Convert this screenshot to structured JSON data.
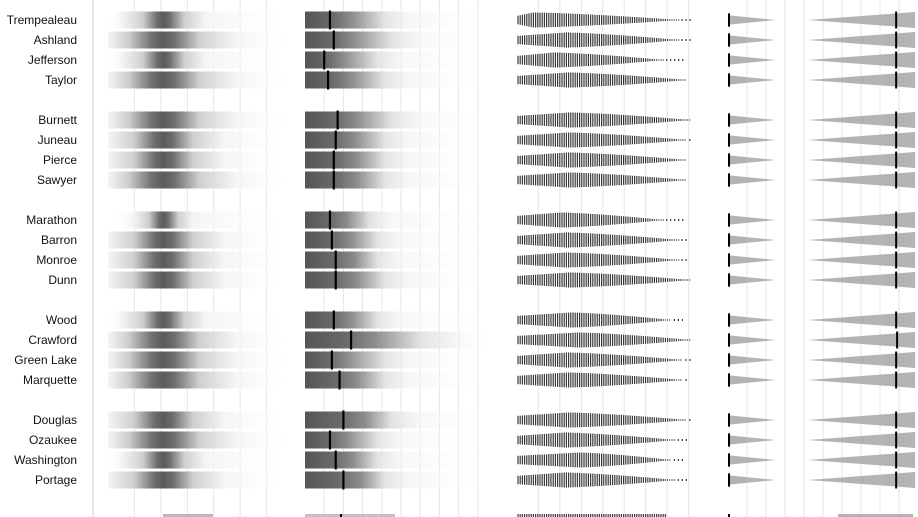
{
  "chart_data": {
    "type": "strip-gradient-comparison",
    "groups": [
      [
        "Trempealeau",
        "Ashland",
        "Jefferson",
        "Taylor"
      ],
      [
        "Burnett",
        "Juneau",
        "Pierce",
        "Sawyer"
      ],
      [
        "Marathon",
        "Barron",
        "Monroe",
        "Dunn"
      ],
      [
        "Wood",
        "Crawford",
        "Green Lake",
        "Marquette"
      ],
      [
        "Douglas",
        "Ozaukee",
        "Washington",
        "Portage"
      ]
    ],
    "rows": [
      {
        "label": "Trempealeau",
        "density_center": 0.3,
        "density_spread": 0.07,
        "bar_mean": 0.24,
        "bar_extent": 0.55,
        "bar_marker": 0.13,
        "violin_len": 0.84,
        "violin_peak": 0.1,
        "violin_tail_end": 0.97
      },
      {
        "label": "Ashland",
        "density_center": 0.3,
        "density_spread": 0.12,
        "bar_mean": 0.25,
        "bar_extent": 0.6,
        "bar_marker": 0.15,
        "violin_len": 0.84,
        "violin_peak": 0.3,
        "violin_tail_end": 0.97
      },
      {
        "label": "Jefferson",
        "density_center": 0.3,
        "density_spread": 0.07,
        "bar_mean": 0.2,
        "bar_extent": 0.5,
        "bar_marker": 0.1,
        "violin_len": 0.76,
        "violin_peak": 0.25,
        "violin_tail_end": 0.92
      },
      {
        "label": "Taylor",
        "density_center": 0.3,
        "density_spread": 0.12,
        "bar_mean": 0.24,
        "bar_extent": 0.55,
        "bar_marker": 0.12,
        "violin_len": 0.88,
        "violin_peak": 0.3,
        "violin_tail_end": 0.95
      },
      {
        "label": "Burnett",
        "density_center": 0.3,
        "density_spread": 0.12,
        "bar_mean": 0.27,
        "bar_extent": 0.6,
        "bar_marker": 0.17,
        "violin_len": 0.9,
        "violin_peak": 0.3,
        "violin_tail_end": 0.96
      },
      {
        "label": "Juneau",
        "density_center": 0.3,
        "density_spread": 0.1,
        "bar_mean": 0.26,
        "bar_extent": 0.55,
        "bar_marker": 0.16,
        "violin_len": 0.88,
        "violin_peak": 0.3,
        "violin_tail_end": 0.96
      },
      {
        "label": "Pierce",
        "density_center": 0.3,
        "density_spread": 0.1,
        "bar_mean": 0.27,
        "bar_extent": 0.55,
        "bar_marker": 0.15,
        "violin_len": 0.88,
        "violin_peak": 0.3,
        "violin_tail_end": 0.95
      },
      {
        "label": "Sawyer",
        "density_center": 0.3,
        "density_spread": 0.12,
        "bar_mean": 0.27,
        "bar_extent": 0.55,
        "bar_marker": 0.15,
        "violin_len": 0.88,
        "violin_peak": 0.3,
        "violin_tail_end": 0.94
      },
      {
        "label": "Marathon",
        "density_center": 0.3,
        "density_spread": 0.05,
        "bar_mean": 0.22,
        "bar_extent": 0.45,
        "bar_marker": 0.13,
        "violin_len": 0.76,
        "violin_peak": 0.3,
        "violin_tail_end": 0.92
      },
      {
        "label": "Barron",
        "density_center": 0.3,
        "density_spread": 0.1,
        "bar_mean": 0.24,
        "bar_extent": 0.5,
        "bar_marker": 0.14,
        "violin_len": 0.84,
        "violin_peak": 0.3,
        "violin_tail_end": 0.95
      },
      {
        "label": "Monroe",
        "density_center": 0.3,
        "density_spread": 0.1,
        "bar_mean": 0.26,
        "bar_extent": 0.5,
        "bar_marker": 0.16,
        "violin_len": 0.84,
        "violin_peak": 0.3,
        "violin_tail_end": 0.95
      },
      {
        "label": "Dunn",
        "density_center": 0.3,
        "density_spread": 0.1,
        "bar_mean": 0.27,
        "bar_extent": 0.55,
        "bar_marker": 0.16,
        "violin_len": 0.9,
        "violin_peak": 0.3,
        "violin_tail_end": 0.96
      },
      {
        "label": "Wood",
        "density_center": 0.3,
        "density_spread": 0.07,
        "bar_mean": 0.24,
        "bar_extent": 0.5,
        "bar_marker": 0.15,
        "violin_len": 0.8,
        "violin_peak": 0.35,
        "violin_tail_end": 0.93
      },
      {
        "label": "Crawford",
        "density_center": 0.3,
        "density_spread": 0.12,
        "bar_mean": 0.36,
        "bar_extent": 0.8,
        "bar_marker": 0.24,
        "violin_len": 0.9,
        "violin_peak": 0.35,
        "violin_tail_end": 0.97
      },
      {
        "label": "Green Lake",
        "density_center": 0.3,
        "density_spread": 0.12,
        "bar_mean": 0.22,
        "bar_extent": 0.55,
        "bar_marker": 0.14,
        "violin_len": 0.86,
        "violin_peak": 0.3,
        "violin_tail_end": 0.96
      },
      {
        "label": "Marquette",
        "density_center": 0.3,
        "density_spread": 0.12,
        "bar_mean": 0.27,
        "bar_extent": 0.55,
        "bar_marker": 0.18,
        "violin_len": 0.86,
        "violin_peak": 0.3,
        "violin_tail_end": 0.95
      },
      {
        "label": "Douglas",
        "density_center": 0.3,
        "density_spread": 0.1,
        "bar_mean": 0.31,
        "bar_extent": 0.6,
        "bar_marker": 0.2,
        "violin_len": 0.88,
        "violin_peak": 0.3,
        "violin_tail_end": 0.96
      },
      {
        "label": "Ozaukee",
        "density_center": 0.3,
        "density_spread": 0.12,
        "bar_mean": 0.22,
        "bar_extent": 0.5,
        "bar_marker": 0.13,
        "violin_len": 0.82,
        "violin_peak": 0.3,
        "violin_tail_end": 0.95
      },
      {
        "label": "Washington",
        "density_center": 0.3,
        "density_spread": 0.07,
        "bar_mean": 0.25,
        "bar_extent": 0.5,
        "bar_marker": 0.16,
        "violin_len": 0.8,
        "violin_peak": 0.4,
        "violin_tail_end": 0.93
      },
      {
        "label": "Portage",
        "density_center": 0.3,
        "density_spread": 0.1,
        "bar_mean": 0.29,
        "bar_extent": 0.55,
        "bar_marker": 0.2,
        "violin_len": 0.82,
        "violin_peak": 0.3,
        "violin_tail_end": 0.95
      }
    ],
    "grid": true,
    "colors": {
      "grid": "#e6e6e6",
      "divider": "#cfcfcf",
      "bar_dark": "#555555",
      "bar_light": "#f2f2f2",
      "marker": "#000000",
      "violin": "#3a3a3a",
      "triangle": "#b3b3b3",
      "triangle_edge": "#000000"
    }
  }
}
